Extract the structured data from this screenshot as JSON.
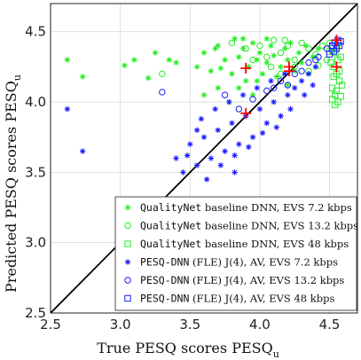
{
  "chart_data": {
    "type": "scatter",
    "title": "",
    "xlabel_text": "True PESQ scores PESQ",
    "xlabel_sub": "u",
    "ylabel_text": "Predicted PESQ scores PESQ",
    "ylabel_sub": "u",
    "xlim": [
      2.5,
      4.7
    ],
    "ylim": [
      2.5,
      4.7
    ],
    "xticks": [
      "2.5",
      "3.0",
      "3.5",
      "4.0",
      "4.5"
    ],
    "yticks": [
      "2.5",
      "3.0",
      "3.5",
      "4.0",
      "4.5"
    ],
    "grid": true,
    "legend_position": "lower-right",
    "colors": {
      "green": "#22ee22",
      "blue": "#1a1aff",
      "red": "#ff0000",
      "diag": "#000000"
    },
    "series": [
      {
        "name": "QualityNet baseline DNN, EVS 7.2 kbps",
        "marker": "asterisk",
        "color": "#22ee22",
        "name_mono": "QualityNet",
        "name_rest": " baseline DNN, EVS 7.2 kbps",
        "points": [
          [
            2.62,
            4.3
          ],
          [
            2.73,
            4.18
          ],
          [
            3.03,
            4.26
          ],
          [
            3.1,
            4.3
          ],
          [
            3.2,
            4.17
          ],
          [
            3.25,
            4.35
          ],
          [
            3.35,
            4.3
          ],
          [
            3.4,
            4.28
          ],
          [
            3.55,
            4.25
          ],
          [
            3.6,
            4.35
          ],
          [
            3.65,
            4.22
          ],
          [
            3.7,
            4.4
          ],
          [
            3.75,
            4.3
          ],
          [
            3.8,
            4.2
          ],
          [
            3.82,
            4.45
          ],
          [
            3.85,
            4.32
          ],
          [
            3.88,
            4.38
          ],
          [
            3.9,
            4.15
          ],
          [
            3.92,
            4.25
          ],
          [
            3.95,
            4.42
          ],
          [
            3.98,
            4.3
          ],
          [
            4.0,
            4.35
          ],
          [
            4.02,
            4.2
          ],
          [
            4.05,
            4.28
          ],
          [
            4.08,
            4.4
          ],
          [
            4.1,
            4.33
          ],
          [
            4.12,
            4.18
          ],
          [
            4.15,
            4.25
          ],
          [
            4.18,
            4.38
          ],
          [
            4.2,
            4.3
          ],
          [
            4.22,
            4.42
          ],
          [
            4.25,
            4.22
          ],
          [
            4.28,
            4.35
          ],
          [
            4.3,
            4.28
          ],
          [
            4.33,
            4.4
          ],
          [
            4.35,
            4.2
          ],
          [
            4.38,
            4.32
          ],
          [
            4.4,
            4.25
          ],
          [
            4.42,
            4.38
          ],
          [
            3.6,
            4.05
          ],
          [
            3.7,
            4.1
          ],
          [
            3.78,
            4.0
          ],
          [
            3.85,
            4.1
          ],
          [
            3.95,
            4.05
          ],
          [
            3.68,
            4.38
          ],
          [
            3.88,
            4.45
          ],
          [
            4.05,
            4.45
          ],
          [
            4.2,
            4.12
          ],
          [
            3.72,
            4.24
          ],
          [
            3.98,
            4.15
          ]
        ]
      },
      {
        "name": "QualityNet baseline DNN, EVS 13.2 kbps",
        "marker": "circle",
        "color": "#22ee22",
        "name_mono": "QualityNet",
        "name_rest": " baseline DNN, EVS 13.2 kbps",
        "points": [
          [
            3.3,
            4.2
          ],
          [
            3.8,
            4.42
          ],
          [
            3.9,
            4.38
          ],
          [
            4.0,
            4.4
          ],
          [
            4.05,
            4.32
          ],
          [
            4.1,
            4.44
          ],
          [
            4.15,
            4.35
          ],
          [
            4.2,
            4.4
          ],
          [
            4.25,
            4.3
          ],
          [
            4.3,
            4.42
          ],
          [
            4.35,
            4.38
          ],
          [
            4.4,
            4.34
          ],
          [
            4.45,
            4.4
          ],
          [
            4.48,
            4.3
          ],
          [
            4.5,
            4.42
          ],
          [
            4.52,
            4.36
          ],
          [
            4.55,
            4.4
          ],
          [
            4.15,
            4.2
          ],
          [
            4.25,
            4.25
          ],
          [
            4.35,
            4.22
          ],
          [
            4.42,
            4.26
          ],
          [
            3.95,
            4.3
          ],
          [
            4.08,
            4.25
          ],
          [
            4.18,
            4.44
          ]
        ]
      },
      {
        "name": "QualityNet baseline DNN, EVS 48 kbps",
        "marker": "square",
        "color": "#22ee22",
        "name_mono": "QualityNet",
        "name_rest": " baseline DNN, EVS 48 kbps",
        "points": [
          [
            4.52,
            4.4
          ],
          [
            4.54,
            4.35
          ],
          [
            4.56,
            4.3
          ],
          [
            4.53,
            4.25
          ],
          [
            4.55,
            4.2
          ],
          [
            4.57,
            4.15
          ],
          [
            4.52,
            4.1
          ],
          [
            4.54,
            4.05
          ],
          [
            4.56,
            4.0
          ],
          [
            4.58,
            4.32
          ],
          [
            4.51,
            4.28
          ],
          [
            4.53,
            4.18
          ],
          [
            4.55,
            4.08
          ],
          [
            4.57,
            4.22
          ],
          [
            4.59,
            4.12
          ],
          [
            4.5,
            4.36
          ],
          [
            4.56,
            4.42
          ],
          [
            4.54,
            3.98
          ],
          [
            4.52,
            4.02
          ],
          [
            4.58,
            4.04
          ]
        ]
      },
      {
        "name": "PESQ-DNN (FLE) J(4), AV, EVS 7.2 kbps",
        "marker": "asterisk",
        "color": "#1a1aff",
        "name_mono": "PESQ-DNN",
        "name_rest": " (FLE) J(4), AV, EVS 7.2 kbps",
        "points": [
          [
            2.62,
            3.95
          ],
          [
            2.73,
            3.65
          ],
          [
            3.4,
            3.6
          ],
          [
            3.45,
            3.5
          ],
          [
            3.5,
            3.7
          ],
          [
            3.55,
            3.55
          ],
          [
            3.6,
            3.75
          ],
          [
            3.65,
            3.6
          ],
          [
            3.7,
            3.8
          ],
          [
            3.75,
            3.65
          ],
          [
            3.8,
            3.85
          ],
          [
            3.85,
            3.7
          ],
          [
            3.9,
            3.9
          ],
          [
            3.95,
            3.75
          ],
          [
            4.0,
            3.95
          ],
          [
            4.05,
            3.85
          ],
          [
            4.1,
            4.0
          ],
          [
            4.15,
            3.9
          ],
          [
            4.2,
            4.05
          ],
          [
            4.25,
            4.1
          ],
          [
            4.3,
            4.15
          ],
          [
            4.35,
            4.2
          ],
          [
            4.4,
            4.25
          ],
          [
            3.58,
            3.88
          ],
          [
            3.68,
            3.95
          ],
          [
            3.78,
            4.0
          ],
          [
            3.88,
            4.05
          ],
          [
            3.98,
            4.1
          ],
          [
            4.08,
            4.15
          ],
          [
            4.18,
            4.2
          ],
          [
            3.62,
            3.45
          ],
          [
            3.72,
            3.55
          ],
          [
            3.82,
            3.62
          ],
          [
            3.92,
            3.68
          ],
          [
            4.02,
            3.78
          ],
          [
            4.12,
            3.82
          ],
          [
            3.55,
            3.8
          ],
          [
            3.82,
            3.5
          ],
          [
            4.22,
            3.95
          ],
          [
            4.32,
            4.05
          ],
          [
            4.38,
            4.12
          ],
          [
            3.48,
            3.62
          ]
        ]
      },
      {
        "name": "PESQ-DNN (FLE) J(4), AV, EVS 13.2 kbps",
        "marker": "circle",
        "color": "#1a1aff",
        "name_mono": "PESQ-DNN",
        "name_rest": " (FLE) J(4), AV, EVS 13.2 kbps",
        "points": [
          [
            3.3,
            4.07
          ],
          [
            3.85,
            3.95
          ],
          [
            3.95,
            4.02
          ],
          [
            4.05,
            4.08
          ],
          [
            4.15,
            4.15
          ],
          [
            4.25,
            4.2
          ],
          [
            4.35,
            4.28
          ],
          [
            4.42,
            4.32
          ],
          [
            4.48,
            4.38
          ],
          [
            4.52,
            4.4
          ],
          [
            4.2,
            4.12
          ],
          [
            4.3,
            4.22
          ],
          [
            4.4,
            4.3
          ],
          [
            3.75,
            4.05
          ],
          [
            4.1,
            4.1
          ]
        ]
      },
      {
        "name": "PESQ-DNN (FLE) J(4), AV, EVS 48 kbps",
        "marker": "square",
        "color": "#1a1aff",
        "name_mono": "PESQ-DNN",
        "name_rest": " (FLE) J(4), AV, EVS 48 kbps",
        "points": [
          [
            4.52,
            4.4
          ],
          [
            4.54,
            4.42
          ],
          [
            4.56,
            4.44
          ],
          [
            4.55,
            4.38
          ],
          [
            4.53,
            4.36
          ],
          [
            4.57,
            4.4
          ],
          [
            4.5,
            4.34
          ],
          [
            4.58,
            4.43
          ]
        ]
      }
    ],
    "means": [
      [
        3.9,
        4.24
      ],
      [
        4.21,
        4.22
      ],
      [
        4.55,
        4.25
      ],
      [
        4.55,
        4.44
      ],
      [
        4.21,
        4.25
      ],
      [
        3.9,
        3.92
      ]
    ]
  }
}
